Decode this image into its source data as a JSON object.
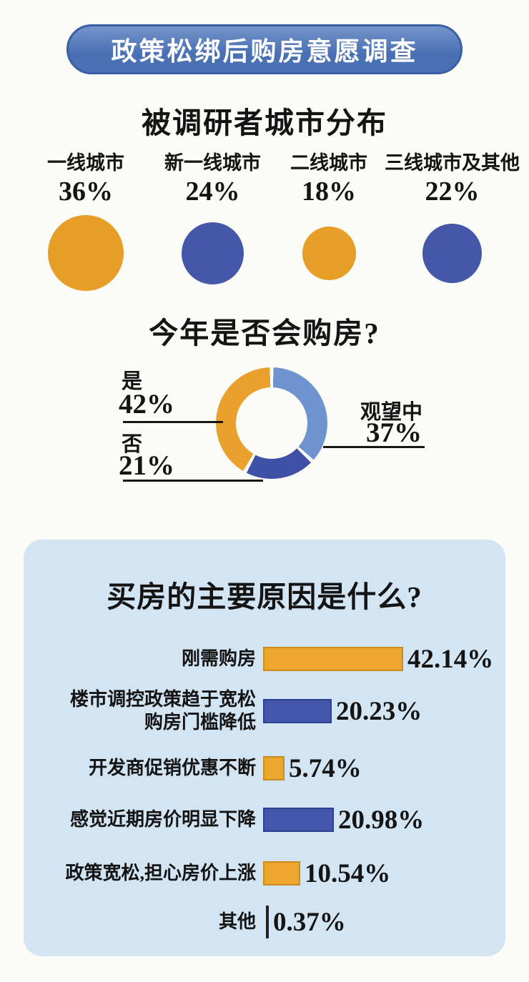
{
  "page": {
    "bg": "#FBFBF8",
    "text_color": "#141414"
  },
  "banner": {
    "title": "政策松绑后购房意愿调查",
    "bg": "#4A70B4",
    "bg_top": "#7494C9",
    "border": "#3A5FA5",
    "text_color": "#FFFFFF"
  },
  "colors": {
    "orange": "#E79E26",
    "blue": "#4557A8",
    "donut_light_blue": "#6E93CE",
    "donut_dark_blue": "#3E51A7",
    "donut_orange": "#E9A02C",
    "box_bg": "#D3E5F2",
    "bar_palette": {
      "orange": {
        "fill": "#EDA62E",
        "border": "#C98C1E"
      },
      "blue": {
        "fill": "#4456AB",
        "border": "#2E3F8F"
      },
      "dark": {
        "fill": "#222222",
        "border": "#222222"
      }
    }
  },
  "city_section": {
    "title": "被调研者城市分布",
    "items": [
      {
        "label": "一线城市",
        "pct_label": "36%",
        "value": 36,
        "color": "#E79E26"
      },
      {
        "label": "新一线城市",
        "pct_label": "24%",
        "value": 24,
        "color": "#4557A8"
      },
      {
        "label": "二线城市",
        "pct_label": "18%",
        "value": 18,
        "color": "#E79E26"
      },
      {
        "label": "三线城市及其他",
        "pct_label": "22%",
        "value": 22,
        "color": "#4557A8"
      }
    ]
  },
  "purchase_section": {
    "title": "今年是否会购房?",
    "yes": {
      "label": "是",
      "pct_label": "42%"
    },
    "no": {
      "label": "否",
      "pct_label": "21%"
    },
    "watching": {
      "label": "观望中",
      "pct_label": "37%"
    },
    "donut_segments": [
      {
        "name": "watching",
        "value": 37,
        "color": "#6E93CE"
      },
      {
        "name": "no",
        "value": 21,
        "color": "#3E51A7"
      },
      {
        "name": "yes",
        "value": 42,
        "color": "#E9A02C"
      }
    ]
  },
  "reasons_section": {
    "title": "买房的主要原因是什么?",
    "rows": [
      {
        "label": "刚需购房",
        "value_label": "42.14%",
        "value": 42.14,
        "color": "orange"
      },
      {
        "label": "楼市调控政策趋于宽松\n购房门槛降低",
        "value_label": "20.23%",
        "value": 20.23,
        "color": "blue"
      },
      {
        "label": "开发商促销优惠不断",
        "value_label": "5.74%",
        "value": 5.74,
        "color": "orange"
      },
      {
        "label": "感觉近期房价明显下降",
        "value_label": "20.98%",
        "value": 20.98,
        "color": "blue"
      },
      {
        "label": "政策宽松,担心房价上涨",
        "value_label": "10.54%",
        "value": 10.54,
        "color": "orange"
      },
      {
        "label": "其他",
        "value_label": "0.37%",
        "value": 0.37,
        "color": "dark"
      }
    ]
  },
  "chart_data": [
    {
      "type": "scatter",
      "subtype": "bubble",
      "title": "被调研者城市分布",
      "categories": [
        "一线城市",
        "新一线城市",
        "二线城市",
        "三线城市及其他"
      ],
      "values": [
        36,
        24,
        18,
        22
      ],
      "unit": "%",
      "colors": [
        "#E79E26",
        "#4557A8",
        "#E79E26",
        "#4557A8"
      ],
      "legend_position": "above-bubbles"
    },
    {
      "type": "pie",
      "subtype": "donut",
      "title": "今年是否会购房?",
      "labels": [
        "是",
        "观望中",
        "否"
      ],
      "values": [
        42,
        37,
        21
      ],
      "unit": "%",
      "colors": [
        "#E9A02C",
        "#6E93CE",
        "#3E51A7"
      ],
      "start": "12-oclock",
      "direction": "clockwise-order: 观望中, 否, 是",
      "legend_position": "callout-lines"
    },
    {
      "type": "bar",
      "orientation": "horizontal",
      "title": "买房的主要原因是什么?",
      "categories": [
        "刚需购房",
        "楼市调控政策趋于宽松 购房门槛降低",
        "开发商促销优惠不断",
        "感觉近期房价明显下降",
        "政策宽松,担心房价上涨",
        "其他"
      ],
      "values": [
        42.14,
        20.23,
        5.74,
        20.98,
        10.54,
        0.37
      ],
      "unit": "%",
      "xlim": [
        0,
        45
      ],
      "grid": false,
      "colors": [
        "#EDA62E",
        "#4456AB",
        "#EDA62E",
        "#4456AB",
        "#EDA62E",
        "#222222"
      ],
      "value_labels": [
        "42.14%",
        "20.23%",
        "5.74%",
        "20.98%",
        "10.54%",
        "0.37%"
      ]
    }
  ]
}
